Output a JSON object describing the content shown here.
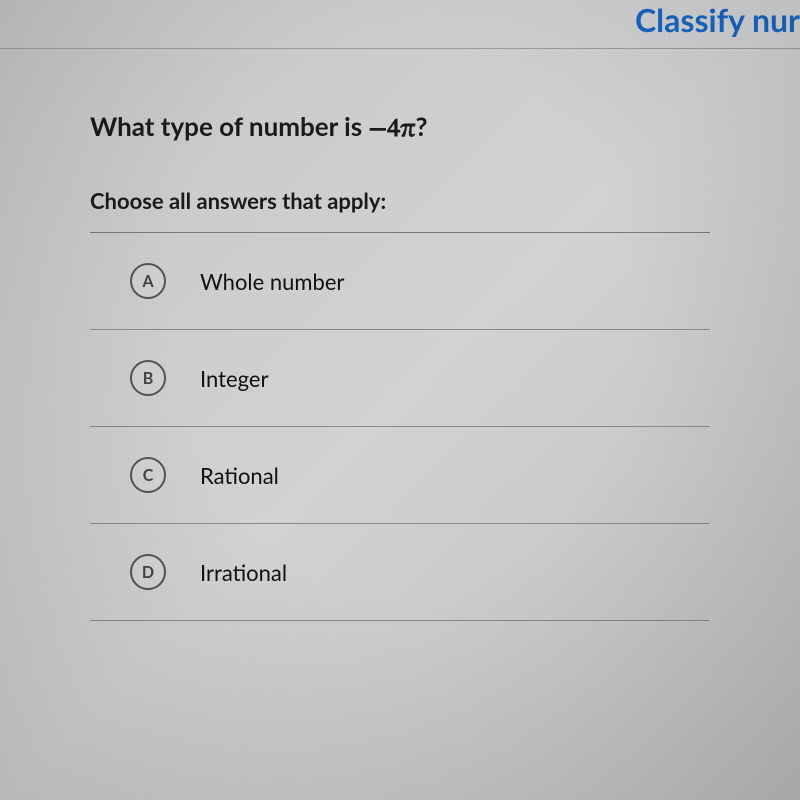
{
  "header": {
    "title_fragment": "Classify nur"
  },
  "question": {
    "prefix": "What type of number is ",
    "math": "−4π",
    "suffix": "?"
  },
  "instruction": "Choose all answers that apply:",
  "choices": [
    {
      "letter": "A",
      "label": "Whole number"
    },
    {
      "letter": "B",
      "label": "Integer"
    },
    {
      "letter": "C",
      "label": "Rational"
    },
    {
      "letter": "D",
      "label": "Irrational"
    }
  ],
  "style": {
    "header_color": "#1865c1",
    "question_fontsize": 26,
    "instruction_fontsize": 22,
    "choice_label_fontsize": 22,
    "choice_letter_border": "#555555",
    "divider_color": "#8a8b8d",
    "background_color": "#cdced0"
  }
}
